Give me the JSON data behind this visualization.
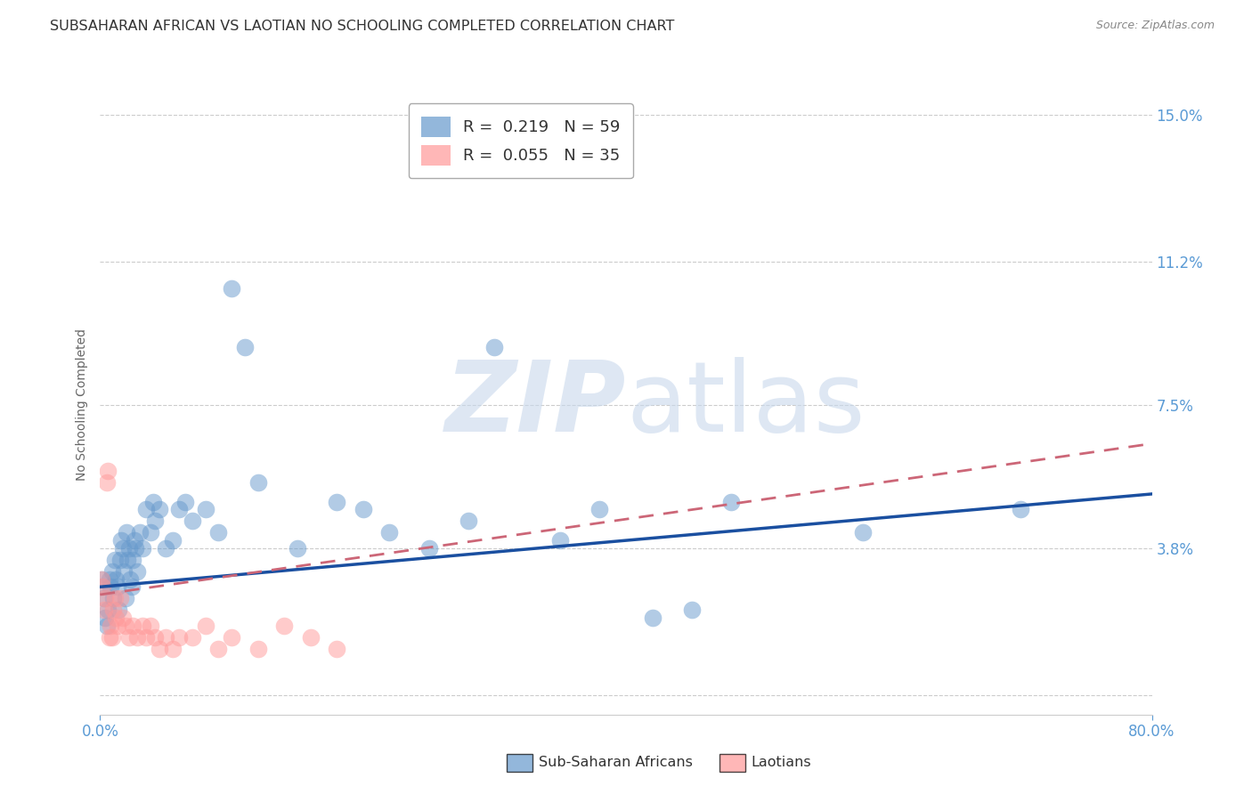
{
  "title": "SUBSAHARAN AFRICAN VS LAOTIAN NO SCHOOLING COMPLETED CORRELATION CHART",
  "source": "Source: ZipAtlas.com",
  "ylabel": "No Schooling Completed",
  "xlim": [
    0.0,
    0.8
  ],
  "ylim": [
    -0.005,
    0.155
  ],
  "yticks": [
    0.0,
    0.038,
    0.075,
    0.112,
    0.15
  ],
  "ytick_labels": [
    "",
    "3.8%",
    "7.5%",
    "11.2%",
    "15.0%"
  ],
  "xtick_labels": [
    "0.0%",
    "80.0%"
  ],
  "xticks": [
    0.0,
    0.8
  ],
  "blue_color": "#6699CC",
  "pink_color": "#FF9999",
  "line_blue": "#1a4fa0",
  "line_pink": "#cc6677",
  "legend_r_blue": "R =  0.219   N = 59",
  "legend_r_pink": "R =  0.055   N = 35",
  "blue_points_x": [
    0.001,
    0.002,
    0.003,
    0.004,
    0.005,
    0.006,
    0.007,
    0.008,
    0.009,
    0.01,
    0.011,
    0.012,
    0.013,
    0.014,
    0.015,
    0.016,
    0.017,
    0.018,
    0.019,
    0.02,
    0.021,
    0.022,
    0.023,
    0.024,
    0.025,
    0.026,
    0.027,
    0.028,
    0.03,
    0.032,
    0.035,
    0.038,
    0.04,
    0.042,
    0.045,
    0.05,
    0.055,
    0.06,
    0.065,
    0.07,
    0.08,
    0.09,
    0.1,
    0.11,
    0.12,
    0.15,
    0.18,
    0.2,
    0.22,
    0.25,
    0.28,
    0.3,
    0.35,
    0.38,
    0.42,
    0.45,
    0.48,
    0.58,
    0.7
  ],
  "blue_points_y": [
    0.03,
    0.028,
    0.025,
    0.02,
    0.018,
    0.022,
    0.03,
    0.028,
    0.032,
    0.025,
    0.035,
    0.03,
    0.028,
    0.022,
    0.035,
    0.04,
    0.038,
    0.032,
    0.025,
    0.042,
    0.035,
    0.038,
    0.03,
    0.028,
    0.035,
    0.04,
    0.038,
    0.032,
    0.042,
    0.038,
    0.048,
    0.042,
    0.05,
    0.045,
    0.048,
    0.038,
    0.04,
    0.048,
    0.05,
    0.045,
    0.048,
    0.042,
    0.105,
    0.09,
    0.055,
    0.038,
    0.05,
    0.048,
    0.042,
    0.038,
    0.045,
    0.09,
    0.04,
    0.048,
    0.02,
    0.022,
    0.05,
    0.042,
    0.048
  ],
  "pink_points_x": [
    0.001,
    0.002,
    0.003,
    0.004,
    0.005,
    0.006,
    0.007,
    0.008,
    0.009,
    0.01,
    0.011,
    0.012,
    0.013,
    0.015,
    0.017,
    0.019,
    0.022,
    0.025,
    0.028,
    0.032,
    0.035,
    0.038,
    0.042,
    0.045,
    0.05,
    0.055,
    0.06,
    0.07,
    0.08,
    0.09,
    0.1,
    0.12,
    0.14,
    0.16,
    0.18
  ],
  "pink_points_y": [
    0.03,
    0.028,
    0.022,
    0.025,
    0.055,
    0.058,
    0.015,
    0.018,
    0.015,
    0.022,
    0.025,
    0.02,
    0.018,
    0.025,
    0.02,
    0.018,
    0.015,
    0.018,
    0.015,
    0.018,
    0.015,
    0.018,
    0.015,
    0.012,
    0.015,
    0.012,
    0.015,
    0.015,
    0.018,
    0.012,
    0.015,
    0.012,
    0.018,
    0.015,
    0.012
  ],
  "blue_line_x": [
    0.0,
    0.8
  ],
  "blue_line_y": [
    0.028,
    0.052
  ],
  "pink_line_x": [
    0.0,
    0.8
  ],
  "pink_line_y": [
    0.026,
    0.065
  ],
  "grid_color": "#cccccc",
  "background_color": "#ffffff",
  "title_fontsize": 11.5,
  "label_fontsize": 10,
  "tick_fontsize": 12,
  "tick_color": "#5b9bd5",
  "label_color": "#666666"
}
